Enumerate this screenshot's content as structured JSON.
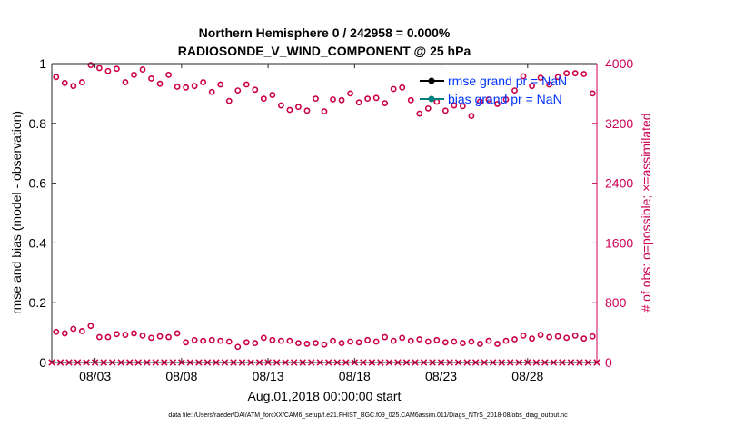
{
  "chart_data": {
    "type": "scatter",
    "title_line1": "Northern Hemisphere 0 / 242958 = 0.000%",
    "title_line2": "RADIOSONDE_V_WIND_COMPONENT @ 25 hPa",
    "ylabel_left": "rmse and bias (model - observation)",
    "ylabel_right": "# of obs: o=possible; ×=assimilated",
    "xlabel": "Aug.01,2018 00:00:00 start",
    "footer": "data file: /Users/raeder/DAI/ATM_forcXX/CAM6_setup/f.e21.FHIST_BGC.f09_025.CAM6assim.011/Diags_NTrS_2018-08/obs_diag_output.nc",
    "x_range": [
      0.5,
      32.0
    ],
    "x_ticks": [
      3,
      8,
      13,
      18,
      23,
      28
    ],
    "x_tick_labels": [
      "08/03",
      "08/08",
      "08/13",
      "08/18",
      "08/23",
      "08/28"
    ],
    "ylim_left": [
      0,
      1
    ],
    "y_ticks_left": [
      "0",
      "0.2",
      "0.4",
      "0.6",
      "0.8",
      "1"
    ],
    "ylim_right": [
      0,
      4000
    ],
    "y_ticks_right": [
      "0",
      "800",
      "1600",
      "2400",
      "3200",
      "4000"
    ],
    "legend": [
      {
        "label": "rmse grand pr = NaN",
        "color": "#000000"
      },
      {
        "label": "bias grand pr = NaN",
        "color": "#008080"
      }
    ],
    "legend_text_color": "#0033ff",
    "colors": {
      "right_axis": "#cc0055",
      "left_axis": "#000000",
      "markers": "#cc0044"
    },
    "series": [
      {
        "name": "possible_00Z",
        "marker": "circle",
        "x": [
          0.75,
          1.75,
          2.75,
          3.75,
          4.75,
          5.75,
          6.75,
          7.75,
          8.75,
          9.75,
          10.75,
          11.75,
          12.75,
          13.75,
          14.75,
          15.75,
          16.75,
          17.75,
          18.75,
          19.75,
          20.75,
          21.75,
          22.75,
          23.75,
          24.75,
          25.75,
          26.75,
          27.75,
          28.75,
          29.75,
          30.75,
          31.75
        ],
        "values": [
          3820,
          3700,
          3980,
          3900,
          3750,
          3920,
          3730,
          3690,
          3700,
          3620,
          3500,
          3720,
          3530,
          3440,
          3420,
          3530,
          3520,
          3600,
          3530,
          3470,
          3680,
          3330,
          3490,
          3440,
          3300,
          3520,
          3520,
          3830,
          3810,
          3820,
          3870,
          3600
        ]
      },
      {
        "name": "possible_12Z",
        "marker": "circle",
        "x": [
          1.25,
          2.25,
          3.25,
          4.25,
          5.25,
          6.25,
          7.25,
          8.25,
          9.25,
          10.25,
          11.25,
          12.25,
          13.25,
          14.25,
          15.25,
          16.25,
          17.25,
          18.25,
          19.25,
          20.25,
          21.25,
          22.25,
          23.25,
          24.25,
          25.25,
          26.25,
          27.25,
          28.25,
          29.25,
          30.25,
          31.25
        ],
        "values": [
          3740,
          3750,
          3940,
          3930,
          3850,
          3800,
          3850,
          3680,
          3750,
          3720,
          3640,
          3650,
          3580,
          3380,
          3370,
          3360,
          3510,
          3480,
          3540,
          3660,
          3510,
          3400,
          3370,
          3430,
          3490,
          3460,
          3640,
          3700,
          3720,
          3870,
          3860
        ]
      },
      {
        "name": "possible_low_00Z",
        "marker": "circle",
        "x": [
          0.75,
          1.75,
          2.75,
          3.75,
          4.75,
          5.75,
          6.75,
          7.75,
          8.75,
          9.75,
          10.75,
          11.75,
          12.75,
          13.75,
          14.75,
          15.75,
          16.75,
          17.75,
          18.75,
          19.75,
          20.75,
          21.75,
          22.75,
          23.75,
          24.75,
          25.75,
          26.75,
          27.75,
          28.75,
          29.75,
          30.75,
          31.75
        ],
        "values": [
          410,
          450,
          490,
          340,
          370,
          360,
          350,
          390,
          300,
          300,
          280,
          270,
          330,
          290,
          260,
          260,
          290,
          280,
          300,
          340,
          330,
          310,
          300,
          280,
          280,
          290,
          290,
          360,
          370,
          350,
          360,
          350
        ]
      },
      {
        "name": "possible_low_12Z",
        "marker": "circle",
        "x": [
          1.25,
          2.25,
          3.25,
          4.25,
          5.25,
          6.25,
          7.25,
          8.25,
          9.25,
          10.25,
          11.25,
          12.25,
          13.25,
          14.25,
          15.25,
          16.25,
          17.25,
          18.25,
          19.25,
          20.25,
          21.25,
          22.25,
          23.25,
          24.25,
          25.25,
          26.25,
          27.25,
          28.25,
          29.25,
          30.25,
          31.25
        ],
        "values": [
          390,
          420,
          340,
          380,
          390,
          330,
          340,
          270,
          290,
          290,
          210,
          260,
          300,
          290,
          250,
          240,
          260,
          270,
          280,
          290,
          290,
          280,
          270,
          260,
          250,
          250,
          310,
          320,
          340,
          330,
          320
        ]
      },
      {
        "name": "assimilated",
        "marker": "x",
        "x": [
          0.5,
          1.0,
          1.5,
          2.0,
          2.5,
          3.0,
          3.5,
          4.0,
          4.5,
          5.0,
          5.5,
          6.0,
          6.5,
          7.0,
          7.5,
          8.0,
          8.5,
          9.0,
          9.5,
          10.0,
          10.5,
          11.0,
          11.5,
          12.0,
          12.5,
          13.0,
          13.5,
          14.0,
          14.5,
          15.0,
          15.5,
          16.0,
          16.5,
          17.0,
          17.5,
          18.0,
          18.5,
          19.0,
          19.5,
          20.0,
          20.5,
          21.0,
          21.5,
          22.0,
          22.5,
          23.0,
          23.5,
          24.0,
          24.5,
          25.0,
          25.5,
          26.0,
          26.5,
          27.0,
          27.5,
          28.0,
          28.5,
          29.0,
          29.5,
          30.0,
          30.5,
          31.0,
          31.5,
          32.0
        ],
        "values": [
          0,
          0,
          0,
          0,
          0,
          0,
          0,
          0,
          0,
          0,
          0,
          0,
          0,
          0,
          0,
          0,
          0,
          0,
          0,
          0,
          0,
          0,
          0,
          0,
          0,
          0,
          0,
          0,
          0,
          0,
          0,
          0,
          0,
          0,
          0,
          0,
          0,
          0,
          0,
          0,
          0,
          0,
          0,
          0,
          0,
          0,
          0,
          0,
          0,
          0,
          0,
          0,
          0,
          0,
          0,
          0,
          0,
          0,
          0,
          0,
          0,
          0,
          0,
          0
        ]
      }
    ]
  }
}
